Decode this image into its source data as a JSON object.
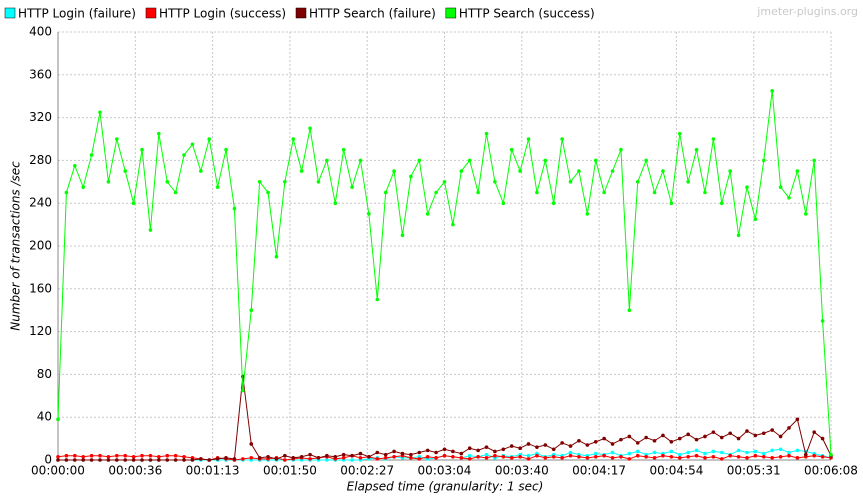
{
  "chart_data": {
    "type": "line",
    "watermark": "jmeter-plugins.org",
    "x_label": "Elapsed time (granularity: 1 sec)",
    "y_label": "Number of transactions /sec",
    "x": [
      0,
      4,
      8,
      12,
      16,
      20,
      24,
      28,
      32,
      36,
      40,
      44,
      48,
      52,
      56,
      60,
      64,
      68,
      72,
      76,
      80,
      84,
      88,
      92,
      96,
      100,
      104,
      108,
      112,
      116,
      120,
      124,
      128,
      132,
      136,
      140,
      144,
      148,
      152,
      156,
      160,
      164,
      168,
      172,
      176,
      180,
      184,
      188,
      192,
      196,
      200,
      204,
      208,
      212,
      216,
      220,
      224,
      228,
      232,
      236,
      240,
      244,
      248,
      252,
      256,
      260,
      264,
      268,
      272,
      276,
      280,
      284,
      288,
      292,
      296,
      300,
      304,
      308,
      312,
      316,
      320,
      324,
      328,
      332,
      336,
      340,
      344,
      348,
      352,
      356,
      360,
      364,
      368
    ],
    "series": [
      {
        "name": "HTTP Login (failure)",
        "color": "#00ffff",
        "values": [
          0,
          0,
          0,
          0,
          0,
          0,
          0,
          0,
          0,
          0,
          0,
          0,
          0,
          0,
          0,
          0,
          0,
          0,
          0,
          0,
          0,
          0,
          0,
          0,
          0,
          0,
          0,
          0,
          0,
          0,
          0,
          0,
          0,
          0,
          0,
          0,
          0,
          1,
          2,
          1,
          3,
          2,
          2,
          3,
          1,
          2,
          4,
          3,
          2,
          4,
          3,
          5,
          2,
          4,
          3,
          5,
          4,
          6,
          3,
          5,
          4,
          7,
          5,
          4,
          6,
          5,
          7,
          4,
          6,
          8,
          5,
          7,
          6,
          8,
          5,
          7,
          9,
          6,
          8,
          7,
          5,
          9,
          7,
          8,
          6,
          9,
          10,
          7,
          9,
          8,
          6,
          4,
          2
        ]
      },
      {
        "name": "HTTP Login (success)",
        "color": "#ff0000",
        "values": [
          3,
          4,
          4,
          3,
          4,
          4,
          3,
          4,
          4,
          3,
          4,
          4,
          3,
          4,
          4,
          3,
          2,
          1,
          0,
          2,
          1,
          0,
          1,
          2,
          1,
          1,
          2,
          0,
          1,
          2,
          1,
          2,
          3,
          1,
          2,
          4,
          2,
          3,
          1,
          2,
          3,
          4,
          2,
          1,
          3,
          2,
          4,
          3,
          2,
          1,
          3,
          2,
          4,
          3,
          2,
          3,
          1,
          4,
          2,
          3,
          2,
          4,
          3,
          2,
          3,
          4,
          2,
          3,
          1,
          4,
          3,
          2,
          4,
          3,
          2,
          3,
          4,
          2,
          3,
          1,
          4,
          3,
          2,
          4,
          3,
          2,
          3,
          4,
          2,
          3,
          4,
          3,
          2
        ]
      },
      {
        "name": "HTTP Search (failure)",
        "color": "#800000",
        "values": [
          0,
          0,
          0,
          0,
          0,
          0,
          0,
          0,
          0,
          0,
          0,
          0,
          0,
          0,
          0,
          0,
          0,
          1,
          0,
          1,
          2,
          1,
          78,
          15,
          2,
          3,
          1,
          4,
          2,
          3,
          5,
          2,
          4,
          3,
          5,
          4,
          6,
          3,
          7,
          5,
          8,
          6,
          5,
          7,
          9,
          7,
          10,
          8,
          6,
          11,
          9,
          12,
          8,
          10,
          13,
          11,
          15,
          12,
          14,
          10,
          16,
          13,
          18,
          14,
          17,
          20,
          15,
          19,
          22,
          16,
          21,
          18,
          23,
          17,
          20,
          24,
          19,
          22,
          26,
          21,
          25,
          20,
          27,
          23,
          25,
          28,
          22,
          30,
          38,
          5,
          26,
          20,
          4
        ]
      },
      {
        "name": "HTTP Search (success)",
        "color": "#00ff00",
        "values": [
          38,
          250,
          275,
          255,
          285,
          325,
          260,
          300,
          270,
          240,
          290,
          215,
          305,
          260,
          250,
          285,
          295,
          270,
          300,
          255,
          290,
          235,
          65,
          140,
          260,
          250,
          190,
          260,
          300,
          270,
          310,
          260,
          280,
          240,
          290,
          255,
          280,
          230,
          150,
          250,
          270,
          210,
          265,
          280,
          230,
          250,
          260,
          220,
          270,
          280,
          250,
          305,
          260,
          240,
          290,
          270,
          300,
          250,
          280,
          240,
          300,
          260,
          270,
          230,
          280,
          250,
          270,
          290,
          140,
          260,
          280,
          250,
          270,
          240,
          305,
          260,
          290,
          250,
          300,
          240,
          270,
          210,
          255,
          225,
          280,
          345,
          255,
          245,
          270,
          230,
          280,
          130,
          5
        ]
      }
    ],
    "xlim": [
      0,
      368
    ],
    "xticks": [
      {
        "value": 0,
        "label": "00:00:00"
      },
      {
        "value": 36.8,
        "label": "00:00:36"
      },
      {
        "value": 73.6,
        "label": "00:01:13"
      },
      {
        "value": 110.4,
        "label": "00:01:50"
      },
      {
        "value": 147.2,
        "label": "00:02:27"
      },
      {
        "value": 184,
        "label": "00:03:04"
      },
      {
        "value": 220.8,
        "label": "00:03:40"
      },
      {
        "value": 257.6,
        "label": "00:04:17"
      },
      {
        "value": 294.4,
        "label": "00:04:54"
      },
      {
        "value": 331.2,
        "label": "00:05:31"
      },
      {
        "value": 368,
        "label": "00:06:08"
      }
    ],
    "ylim": [
      0,
      400
    ],
    "yticks": [
      0,
      40,
      80,
      120,
      160,
      200,
      240,
      280,
      320,
      360,
      400
    ],
    "grid": true
  }
}
